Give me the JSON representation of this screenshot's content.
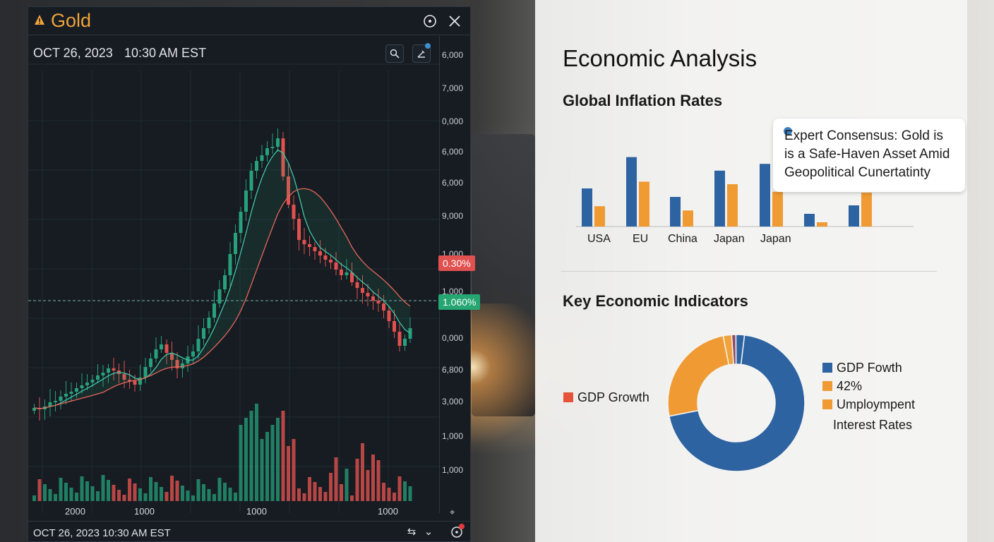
{
  "trading_panel": {
    "title": "Gold",
    "date": "OCT 26, 2023",
    "time": "10:30 AM EST",
    "footer_datetime": "OCT 26, 2023 10:30 AM EST",
    "price_axis_labels": [
      "6,000",
      "7,000",
      "0,000",
      "6,000",
      "6,000",
      "9,000",
      "1,000",
      "1,000",
      "0,000",
      "6,800",
      "3,000",
      "1,000",
      "1,000"
    ],
    "price_tag_red": "0.30%",
    "price_tag_green": "1.060%",
    "time_axis_labels": [
      "2000",
      "1000",
      "1000",
      "1000"
    ],
    "colors": {
      "up": "#26a17b",
      "down": "#e0514f",
      "accent": "#f0a33a"
    },
    "icons": [
      "warning-icon",
      "target-icon",
      "close-icon",
      "search-icon",
      "draw-icon",
      "settings-icon",
      "filter-icon",
      "chevron-down-icon",
      "alert-icon",
      "crosshair-icon"
    ]
  },
  "analysis": {
    "title": "Economic Analysis",
    "inflation_title": "Global Inflation Rates",
    "bar_labels": [
      "USA",
      "EU",
      "China",
      "Japan",
      "Japan"
    ],
    "callout_lines": [
      "Expert Consensus: Gold is",
      "is a Safe-Haven Asset Amid",
      "Geopolitical Cunertatinty"
    ],
    "indicators_title": "Key Economic Indicators",
    "left_legend": "GDP Growth",
    "right_legend": [
      "GDP Fowth",
      "42%",
      "Umploympent"
    ],
    "right_legend_extra": "Interest Rates",
    "colors": {
      "blue": "#2e63a1",
      "orange": "#ef9a33",
      "red": "#e5533b"
    }
  },
  "chart_data": [
    {
      "type": "bar",
      "title": "Global Inflation Rates",
      "categories": [
        "USA",
        "EU",
        "China",
        "Japan",
        "Japan",
        "",
        ""
      ],
      "series": [
        {
          "values": [
            4.5,
            8.2,
            3.5,
            6.6,
            7.4,
            1.5,
            2.5
          ]
        },
        {
          "values": [
            2.4,
            5.3,
            1.9,
            5.0,
            4.1,
            0.5,
            4.0
          ]
        }
      ],
      "ylim": [
        0,
        10
      ]
    },
    {
      "type": "pie",
      "title": "Key Economic Indicators",
      "values": [
        70,
        25,
        2,
        1,
        2
      ],
      "colors": [
        "#2e63a1",
        "#ef9a33",
        "#f0a33a",
        "#8a4a6a",
        "#2e63a1"
      ]
    }
  ]
}
